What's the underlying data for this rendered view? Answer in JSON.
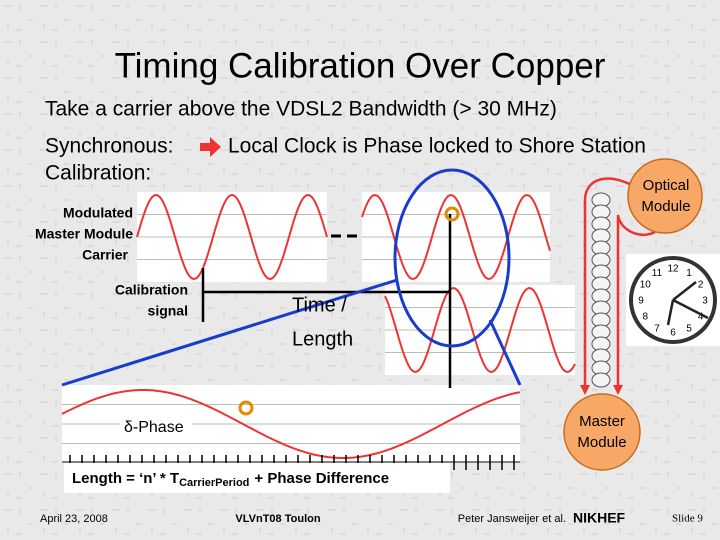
{
  "title": "Timing Calibration Over Copper",
  "bullets": [
    "Take a carrier above the VDSL2 Bandwidth (> 30 MHz)",
    "Synchronous:",
    "Local Clock is Phase locked to Shore Station",
    "Calibration:"
  ],
  "diagram": {
    "carrier_label": [
      "Modulated",
      "Master Module",
      "Carrier"
    ],
    "calibration_label": [
      "Calibration",
      "signal"
    ],
    "time_label": [
      "Time /",
      "Length"
    ],
    "optical_module": [
      "Optical",
      "Module"
    ],
    "master_module": [
      "Master",
      "Module"
    ],
    "delta_phase": "δ-Phase",
    "formula": {
      "prefix": "Length = ‘n’ * T",
      "subscript": "CarrierPeriod",
      "suffix": "+ Phase Difference"
    },
    "clock_numbers": [
      "12",
      "1",
      "2",
      "3",
      "4",
      "5",
      "6",
      "7",
      "8",
      "9",
      "10",
      "11"
    ]
  },
  "footer": {
    "date": "April 23, 2008",
    "event": "VLVnT08 Toulon",
    "author": "Peter Jansweijer et al.",
    "logo": "NIKHEF",
    "slide": "Slide 9"
  }
}
